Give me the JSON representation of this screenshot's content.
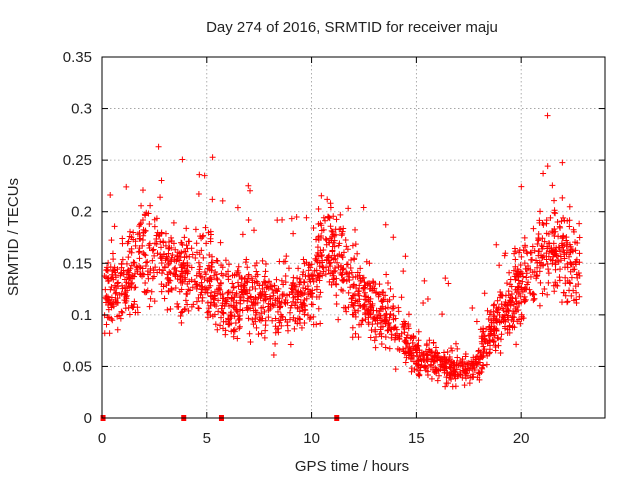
{
  "chart_data": {
    "type": "scatter",
    "title": "Day 274 of 2016, SRMTID for receiver maju",
    "xlabel": "GPS time / hours",
    "ylabel": "SRMTID / TECUs",
    "xlim": [
      0,
      24
    ],
    "ylim": [
      0,
      0.35
    ],
    "x_ticks": [
      0,
      5,
      10,
      15,
      20
    ],
    "x_tick_labels": [
      "0",
      "5",
      "10",
      "15",
      "20"
    ],
    "y_ticks": [
      0,
      0.05,
      0.1,
      0.15,
      0.2,
      0.25,
      0.3,
      0.35
    ],
    "y_tick_labels": [
      "0",
      "0.05",
      "0.1",
      "0.15",
      "0.2",
      "0.25",
      "0.3",
      "0.35"
    ],
    "grid": true,
    "marker": "plus",
    "series_color": "#ff0000",
    "baseline_markers_x": [
      0.05,
      3.9,
      5.7,
      11.2
    ],
    "baseline_markers_y": 0,
    "x_range": [
      0.1,
      22.8
    ],
    "trend": [
      [
        0.1,
        0.12
      ],
      [
        1.0,
        0.13
      ],
      [
        2.0,
        0.16
      ],
      [
        3.0,
        0.15
      ],
      [
        4.0,
        0.14
      ],
      [
        5.0,
        0.14
      ],
      [
        6.0,
        0.11
      ],
      [
        7.0,
        0.12
      ],
      [
        8.0,
        0.11
      ],
      [
        9.0,
        0.11
      ],
      [
        10.0,
        0.13
      ],
      [
        10.8,
        0.17
      ],
      [
        12.0,
        0.12
      ],
      [
        13.0,
        0.11
      ],
      [
        14.0,
        0.09
      ],
      [
        15.0,
        0.06
      ],
      [
        16.0,
        0.055
      ],
      [
        17.0,
        0.045
      ],
      [
        17.7,
        0.05
      ],
      [
        18.5,
        0.08
      ],
      [
        19.5,
        0.11
      ],
      [
        20.5,
        0.15
      ],
      [
        21.5,
        0.17
      ],
      [
        22.8,
        0.14
      ]
    ],
    "spread": 0.04,
    "num_points": 2100
  }
}
